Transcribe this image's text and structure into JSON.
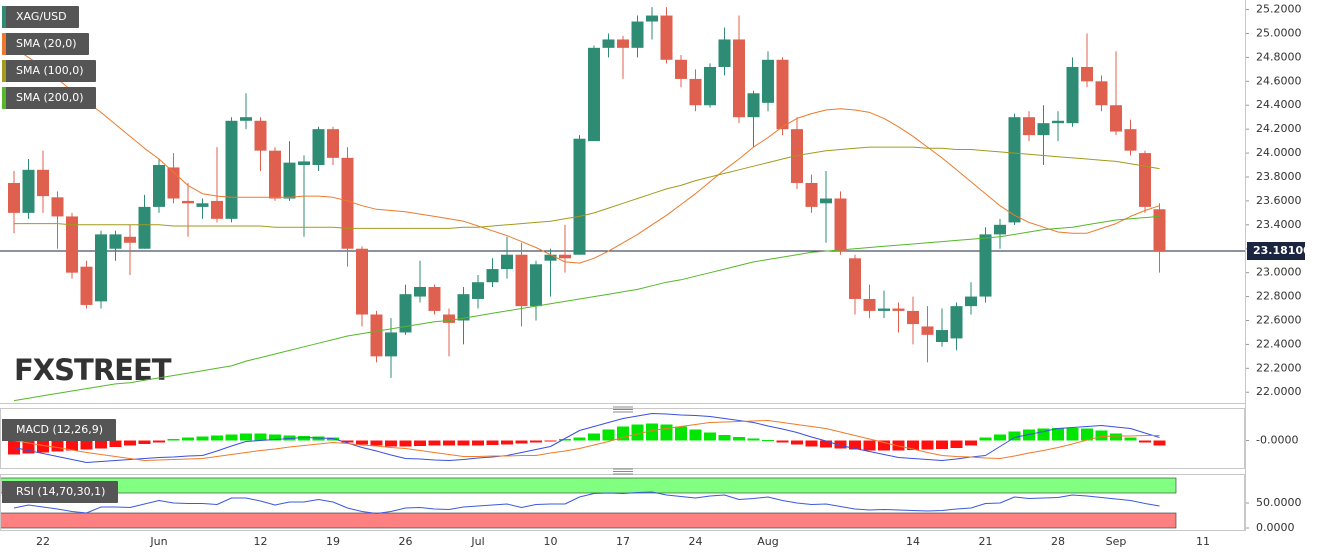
{
  "chart_data": [
    {
      "type": "candlestick",
      "name": "XAG/USD",
      "up_color": "#2e8b74",
      "down_color": "#e0604f",
      "categories": [
        null,
        null,
        "22",
        null,
        null,
        null,
        null,
        null,
        null,
        null,
        "Jun",
        null,
        null,
        null,
        null,
        null,
        null,
        "12",
        null,
        null,
        null,
        null,
        "19",
        null,
        null,
        null,
        null,
        "26",
        null,
        null,
        null,
        null,
        "Jul",
        null,
        null,
        null,
        null,
        "10",
        null,
        null,
        null,
        null,
        "17",
        null,
        null,
        null,
        null,
        "24",
        null,
        null,
        null,
        null,
        "Aug",
        null,
        null,
        null,
        null,
        null,
        null,
        null,
        null,
        null,
        "14",
        null,
        null,
        null,
        null,
        "21",
        null,
        null,
        null,
        null,
        "28",
        null,
        null,
        null,
        "Sep",
        null,
        null,
        null,
        null,
        null,
        "11"
      ],
      "open": [
        23.75,
        23.5,
        23.86,
        23.63,
        23.47,
        23.05,
        22.76,
        23.2,
        23.3,
        23.2,
        23.55,
        23.88,
        23.6,
        23.55,
        23.6,
        23.45,
        24.27,
        24.27,
        24.02,
        23.62,
        23.9,
        23.9,
        24.2,
        23.96,
        23.2,
        22.65,
        22.3,
        22.5,
        22.8,
        22.88,
        22.65,
        22.6,
        22.78,
        22.92,
        23.03,
        23.15,
        22.72,
        23.1,
        23.15,
        23.15,
        24.1,
        24.88,
        24.95,
        24.88,
        25.1,
        25.15,
        24.78,
        24.62,
        24.4,
        24.72,
        24.95,
        24.3,
        24.42,
        24.78,
        24.2,
        23.75,
        23.58,
        23.62,
        23.12,
        22.78,
        22.68,
        22.7,
        22.68,
        22.55,
        22.42,
        22.45,
        22.72,
        22.8,
        23.32,
        23.42,
        24.3,
        24.15,
        24.25,
        24.25,
        24.72,
        24.6,
        24.4,
        24.2,
        24.0,
        23.53,
        null,
        null,
        null
      ],
      "high": [
        23.85,
        23.95,
        24.02,
        23.68,
        23.5,
        23.1,
        23.35,
        23.35,
        23.4,
        23.65,
        23.95,
        24.0,
        23.75,
        23.62,
        24.05,
        24.3,
        24.5,
        24.3,
        24.05,
        24.1,
        23.98,
        24.22,
        24.22,
        24.05,
        23.22,
        22.68,
        22.62,
        22.9,
        23.1,
        22.9,
        22.7,
        22.88,
        22.98,
        23.12,
        23.3,
        23.25,
        23.1,
        23.2,
        23.4,
        24.15,
        24.9,
        25.0,
        24.98,
        25.15,
        25.22,
        25.22,
        24.82,
        24.7,
        24.75,
        25.05,
        25.15,
        24.52,
        24.85,
        24.8,
        24.3,
        23.82,
        23.85,
        23.68,
        23.15,
        22.9,
        22.85,
        22.75,
        22.8,
        22.72,
        22.7,
        22.75,
        22.92,
        23.38,
        23.45,
        24.33,
        24.35,
        24.4,
        24.35,
        24.8,
        25.0,
        24.65,
        24.85,
        24.28,
        24.02,
        23.58,
        null,
        null,
        null
      ],
      "low": [
        23.33,
        23.45,
        23.5,
        23.2,
        22.95,
        22.7,
        22.7,
        23.1,
        22.98,
        23.2,
        23.5,
        23.58,
        23.3,
        23.45,
        23.42,
        23.42,
        24.2,
        23.85,
        23.6,
        23.6,
        23.3,
        23.85,
        23.9,
        23.05,
        22.55,
        22.25,
        22.12,
        22.48,
        22.75,
        22.65,
        22.3,
        22.4,
        22.7,
        22.88,
        22.95,
        22.55,
        22.6,
        22.8,
        23.0,
        23.15,
        24.1,
        24.8,
        24.62,
        24.8,
        24.95,
        24.75,
        24.55,
        24.35,
        24.38,
        24.65,
        24.25,
        24.05,
        24.35,
        24.15,
        23.7,
        23.5,
        23.25,
        23.15,
        22.65,
        22.62,
        22.62,
        22.5,
        22.4,
        22.25,
        22.38,
        22.35,
        22.65,
        22.75,
        23.2,
        23.4,
        24.1,
        23.9,
        24.1,
        24.22,
        24.55,
        24.35,
        24.15,
        23.98,
        23.5,
        23.0,
        null,
        null,
        null
      ],
      "close": [
        23.5,
        23.86,
        23.64,
        23.47,
        23.0,
        22.73,
        23.32,
        23.32,
        23.25,
        23.55,
        23.9,
        23.62,
        23.58,
        23.58,
        23.45,
        24.27,
        24.3,
        24.02,
        23.62,
        23.92,
        23.93,
        24.2,
        23.96,
        23.2,
        22.65,
        22.3,
        22.5,
        22.82,
        22.88,
        22.68,
        22.58,
        22.82,
        22.92,
        23.03,
        23.15,
        22.72,
        23.07,
        23.15,
        23.12,
        24.12,
        24.88,
        24.95,
        24.88,
        25.1,
        25.15,
        24.78,
        24.62,
        24.4,
        24.72,
        24.95,
        24.3,
        24.5,
        24.78,
        24.2,
        23.75,
        23.55,
        23.62,
        23.18,
        22.78,
        22.68,
        22.7,
        22.68,
        22.57,
        22.48,
        22.52,
        22.72,
        22.8,
        23.32,
        23.4,
        24.3,
        24.15,
        24.25,
        24.27,
        24.72,
        24.6,
        24.4,
        24.18,
        24.02,
        23.55,
        23.181,
        null,
        null,
        null
      ],
      "series": [
        {
          "name": "SMA (20,0)",
          "color": "#ec7a2c",
          "values": [
            24.88,
            24.8,
            24.72,
            24.62,
            24.52,
            24.43,
            24.34,
            24.24,
            24.14,
            24.04,
            23.95,
            23.84,
            23.73,
            23.66,
            23.64,
            23.63,
            23.63,
            23.63,
            23.63,
            23.63,
            23.64,
            23.64,
            23.63,
            23.6,
            23.56,
            23.53,
            23.52,
            23.51,
            23.49,
            23.47,
            23.45,
            23.43,
            23.39,
            23.35,
            23.31,
            23.26,
            23.21,
            23.15,
            23.09,
            23.08,
            23.12,
            23.18,
            23.25,
            23.32,
            23.4,
            23.48,
            23.57,
            23.66,
            23.76,
            23.86,
            23.95,
            24.05,
            24.13,
            24.22,
            24.29,
            24.33,
            24.36,
            24.37,
            24.36,
            24.34,
            24.29,
            24.22,
            24.14,
            24.05,
            23.96,
            23.86,
            23.76,
            23.66,
            23.56,
            23.48,
            23.42,
            23.38,
            23.34,
            23.33,
            23.33,
            23.37,
            23.41,
            23.47,
            23.52,
            23.56,
            null,
            null,
            null
          ]
        },
        {
          "name": "SMA (100,0)",
          "color": "#a39a1e",
          "values": [
            23.41,
            23.41,
            23.41,
            23.41,
            23.4,
            23.4,
            23.4,
            23.4,
            23.4,
            23.4,
            23.4,
            23.39,
            23.39,
            23.39,
            23.39,
            23.39,
            23.39,
            23.39,
            23.38,
            23.38,
            23.38,
            23.38,
            23.38,
            23.37,
            23.37,
            23.37,
            23.37,
            23.37,
            23.37,
            23.37,
            23.37,
            23.38,
            23.38,
            23.39,
            23.4,
            23.41,
            23.42,
            23.43,
            23.45,
            23.47,
            23.5,
            23.54,
            23.58,
            23.62,
            23.66,
            23.7,
            23.73,
            23.77,
            23.8,
            23.83,
            23.86,
            23.89,
            23.92,
            23.95,
            23.98,
            24.0,
            24.02,
            24.03,
            24.04,
            24.05,
            24.05,
            24.05,
            24.05,
            24.04,
            24.04,
            24.03,
            24.03,
            24.02,
            24.01,
            24.0,
            23.99,
            23.98,
            23.97,
            23.96,
            23.95,
            23.94,
            23.93,
            23.91,
            23.89,
            23.87,
            null,
            null,
            null
          ]
        },
        {
          "name": "SMA (200,0)",
          "color": "#55b82a",
          "values": [
            21.93,
            21.95,
            21.97,
            21.99,
            22.01,
            22.03,
            22.05,
            22.07,
            22.08,
            22.1,
            22.12,
            22.14,
            22.16,
            22.18,
            22.2,
            22.22,
            22.26,
            22.29,
            22.32,
            22.35,
            22.38,
            22.41,
            22.44,
            22.47,
            22.49,
            22.51,
            22.53,
            22.55,
            22.57,
            22.59,
            22.6,
            22.62,
            22.64,
            22.66,
            22.68,
            22.7,
            22.72,
            22.74,
            22.76,
            22.78,
            22.8,
            22.82,
            22.84,
            22.86,
            22.89,
            22.92,
            22.94,
            22.97,
            23.0,
            23.03,
            23.06,
            23.09,
            23.11,
            23.13,
            23.15,
            23.17,
            23.18,
            23.19,
            23.2,
            23.21,
            23.22,
            23.23,
            23.24,
            23.25,
            23.26,
            23.27,
            23.28,
            23.29,
            23.3,
            23.32,
            23.34,
            23.36,
            23.37,
            23.38,
            23.4,
            23.42,
            23.44,
            23.45,
            23.46,
            23.47,
            null,
            null,
            null
          ]
        }
      ],
      "ylim": [
        21.91,
        25.28
      ],
      "yticks": [
        {
          "value": 22.0,
          "label": "22.0000"
        },
        {
          "value": 22.2,
          "label": "22.2000"
        },
        {
          "value": 22.4,
          "label": "22.4000"
        },
        {
          "value": 22.6,
          "label": "22.6000"
        },
        {
          "value": 22.8,
          "label": "22.8000"
        },
        {
          "value": 23.0,
          "label": "23.0000"
        },
        {
          "value": 23.2,
          "label": "23.2000"
        },
        {
          "value": 23.4,
          "label": "23.4000"
        },
        {
          "value": 23.6,
          "label": "23.6000"
        },
        {
          "value": 23.8,
          "label": "23.8000"
        },
        {
          "value": 24.0,
          "label": "24.0000"
        },
        {
          "value": 24.2,
          "label": "24.2000"
        },
        {
          "value": 24.4,
          "label": "24.4000"
        },
        {
          "value": 24.6,
          "label": "24.6000"
        },
        {
          "value": 24.8,
          "label": "24.8000"
        },
        {
          "value": 25.0,
          "label": "25.0000"
        },
        {
          "value": 25.2,
          "label": "25.2000"
        }
      ],
      "last_price": {
        "value": 23.181,
        "label": "23.18100"
      },
      "watermark": "FXSTREET"
    },
    {
      "type": "macd",
      "name": "MACD (12,26,9)",
      "up_color": "#00e600",
      "down_color": "#ff1010",
      "macd_color": "#3a4fe0",
      "signal_color": "#f07b2a",
      "histogram": [
        -0.28,
        -0.26,
        -0.24,
        -0.22,
        -0.2,
        -0.18,
        -0.16,
        -0.13,
        -0.1,
        -0.07,
        -0.04,
        0.03,
        0.06,
        0.08,
        0.1,
        0.12,
        0.14,
        0.14,
        0.12,
        0.1,
        0.09,
        0.08,
        0.06,
        -0.04,
        -0.08,
        -0.1,
        -0.12,
        -0.12,
        -0.11,
        -0.1,
        -0.1,
        -0.1,
        -0.1,
        -0.09,
        -0.08,
        -0.06,
        -0.04,
        -0.02,
        0.03,
        0.06,
        0.14,
        0.22,
        0.28,
        0.32,
        0.34,
        0.32,
        0.28,
        0.22,
        0.16,
        0.11,
        0.07,
        0.04,
        0.01,
        -0.04,
        -0.08,
        -0.12,
        -0.14,
        -0.16,
        -0.18,
        -0.2,
        -0.2,
        -0.2,
        -0.19,
        -0.18,
        -0.17,
        -0.15,
        -0.1,
        0.06,
        0.12,
        0.18,
        0.22,
        0.24,
        0.25,
        0.25,
        0.24,
        0.2,
        0.14,
        0.06,
        -0.04,
        -0.1,
        null,
        null,
        null
      ],
      "macd": [
        -0.14,
        -0.2,
        -0.26,
        -0.32,
        -0.38,
        -0.44,
        -0.42,
        -0.4,
        -0.38,
        -0.36,
        -0.34,
        -0.33,
        -0.31,
        -0.3,
        -0.21,
        -0.11,
        -0.02,
        0.0,
        0.02,
        0.04,
        0.06,
        0.05,
        0.04,
        -0.05,
        -0.14,
        -0.21,
        -0.29,
        -0.36,
        -0.37,
        -0.39,
        -0.4,
        -0.38,
        -0.35,
        -0.33,
        -0.3,
        -0.24,
        -0.18,
        -0.12,
        0.04,
        0.2,
        0.28,
        0.36,
        0.44,
        0.49,
        0.54,
        0.53,
        0.51,
        0.5,
        0.48,
        0.44,
        0.4,
        0.36,
        0.29,
        0.23,
        0.16,
        0.07,
        -0.01,
        -0.1,
        -0.16,
        -0.22,
        -0.28,
        -0.34,
        -0.36,
        -0.38,
        -0.4,
        -0.37,
        -0.33,
        -0.3,
        -0.12,
        0.06,
        0.12,
        0.18,
        0.24,
        0.26,
        0.28,
        0.3,
        0.27,
        0.24,
        0.15,
        0.06,
        null,
        null,
        null
      ],
      "signal": [
        0.0,
        -0.05,
        -0.1,
        -0.14,
        -0.19,
        -0.24,
        -0.28,
        -0.32,
        -0.36,
        -0.4,
        -0.39,
        -0.38,
        -0.37,
        -0.36,
        -0.32,
        -0.28,
        -0.24,
        -0.2,
        -0.17,
        -0.13,
        -0.1,
        -0.07,
        -0.04,
        -0.06,
        -0.09,
        -0.11,
        -0.14,
        -0.16,
        -0.2,
        -0.24,
        -0.28,
        -0.32,
        -0.32,
        -0.31,
        -0.31,
        -0.3,
        -0.3,
        -0.25,
        -0.21,
        -0.16,
        -0.09,
        -0.02,
        0.06,
        0.13,
        0.2,
        0.24,
        0.28,
        0.32,
        0.36,
        0.37,
        0.38,
        0.39,
        0.4,
        0.36,
        0.32,
        0.28,
        0.24,
        0.17,
        0.1,
        0.03,
        -0.04,
        -0.11,
        -0.17,
        -0.24,
        -0.3,
        -0.32,
        -0.33,
        -0.35,
        -0.36,
        -0.31,
        -0.25,
        -0.2,
        -0.14,
        -0.07,
        0.01,
        0.08,
        0.09,
        0.09,
        0.1,
        0.1,
        null,
        null,
        null
      ],
      "ylim": [
        -0.55,
        0.55
      ],
      "yticks": [
        {
          "value": 0,
          "label": "-0.0000"
        }
      ]
    },
    {
      "type": "rsi",
      "name": "RSI (14,70,30,1)",
      "color": "#3b5bdb",
      "overbought_color": "#80ff80",
      "oversold_color": "#ff8080",
      "values": [
        40,
        46,
        42,
        38,
        33,
        30,
        42,
        42,
        41,
        48,
        55,
        50,
        49,
        49,
        47,
        60,
        60,
        54,
        46,
        52,
        52,
        57,
        52,
        40,
        33,
        29,
        33,
        40,
        41,
        38,
        37,
        42,
        44,
        46,
        48,
        41,
        47,
        48,
        48,
        62,
        69,
        70,
        69,
        71,
        72,
        66,
        63,
        60,
        64,
        66,
        57,
        59,
        62,
        55,
        50,
        47,
        48,
        43,
        38,
        36,
        37,
        36,
        35,
        34,
        35,
        38,
        40,
        49,
        50,
        62,
        59,
        60,
        61,
        66,
        64,
        61,
        58,
        55,
        49,
        44,
        null,
        null,
        null
      ],
      "overbought": 70,
      "oversold": 30,
      "ylim": [
        0,
        100
      ],
      "yticks": [
        {
          "value": 50,
          "label": "50.0000"
        },
        {
          "value": 0,
          "label": "0.0000"
        }
      ]
    }
  ]
}
